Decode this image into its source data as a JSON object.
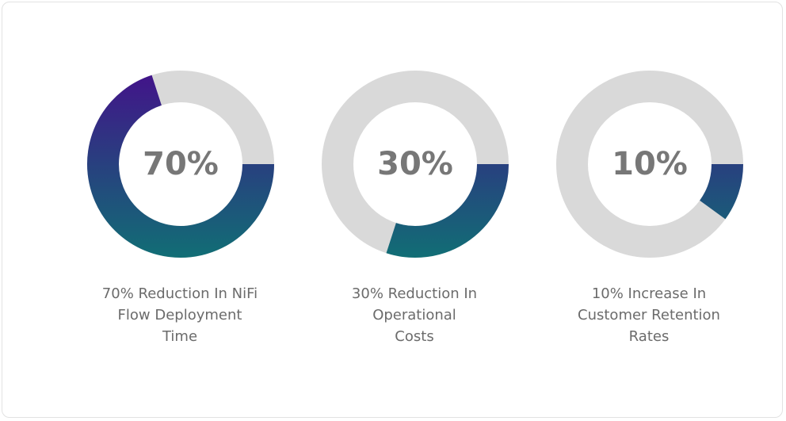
{
  "chart_data": {
    "type": "donut",
    "colors": {
      "track": "#d9d9d9",
      "gradient_top": "#43128a",
      "gradient_mid": "#28407f",
      "gradient_bottom": "#116e75",
      "value_text": "#777777",
      "caption_text": "#6b6b6b"
    },
    "items": [
      {
        "value": 70,
        "value_label": "70%",
        "caption_lines": [
          "70% Reduction In NiFi",
          "Flow Deployment",
          "Time"
        ]
      },
      {
        "value": 30,
        "value_label": "30%",
        "caption_lines": [
          "30% Reduction In",
          "Operational",
          "Costs"
        ]
      },
      {
        "value": 10,
        "value_label": "10%",
        "caption_lines": [
          "10% Increase In",
          "Customer Retention",
          "Rates"
        ]
      }
    ]
  }
}
